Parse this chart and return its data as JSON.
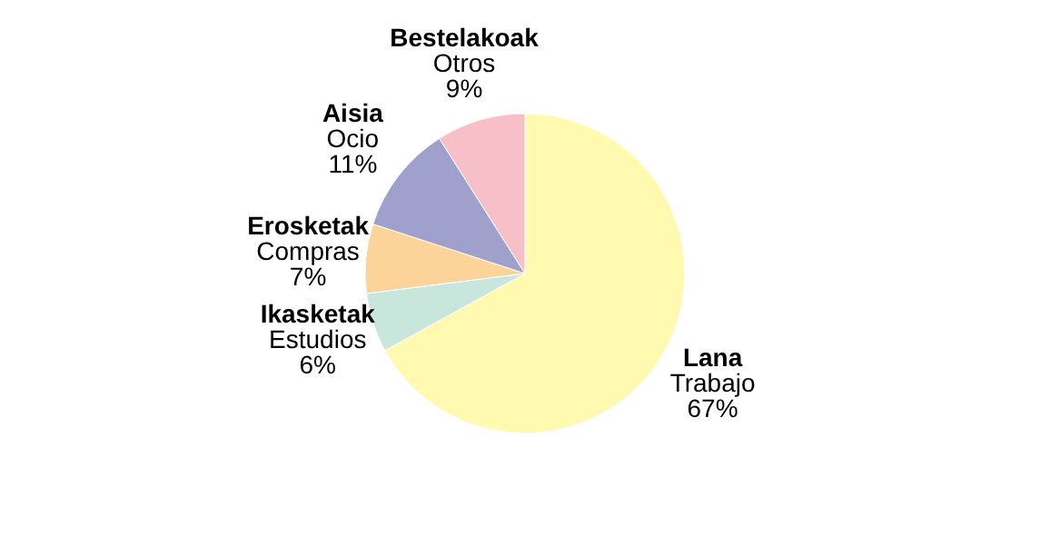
{
  "chart_data": {
    "type": "pie",
    "categories": [
      "Lana\nTrabajo",
      "Ikasketak\nEstudios",
      "Erosketak\nCompras",
      "Aisia\nOcio",
      "Bestelakoak\nOtros"
    ],
    "values": [
      67,
      6,
      7,
      11,
      9
    ],
    "value_labels": [
      "67%",
      "6%",
      "7%",
      "11%",
      "9%"
    ],
    "colors": [
      "#fffab0",
      "#c8e6dc",
      "#fcd49a",
      "#9fa0cc",
      "#f7c0c8"
    ]
  }
}
